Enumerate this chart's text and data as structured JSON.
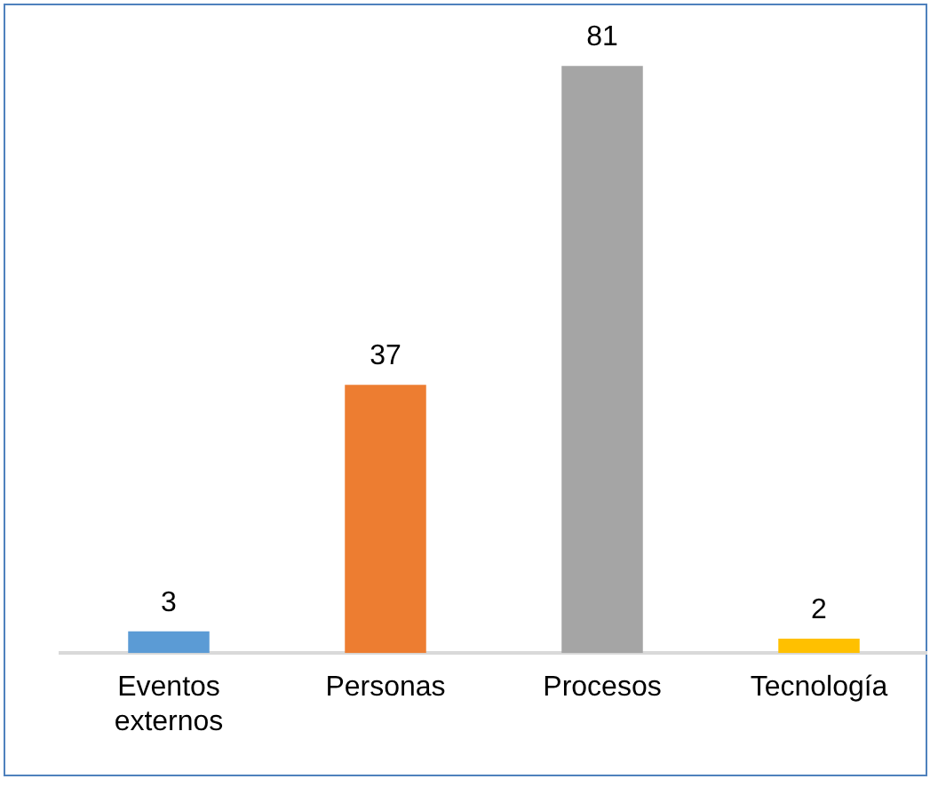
{
  "chart_data": {
    "type": "bar",
    "categories": [
      "Eventos externos",
      "Personas",
      "Procesos",
      "Tecnología"
    ],
    "values": [
      3,
      37,
      81,
      2
    ],
    "colors": [
      "#5b9bd5",
      "#ed7d31",
      "#a5a5a5",
      "#ffc000"
    ],
    "data_labels": true,
    "grid": false,
    "legend": false
  }
}
